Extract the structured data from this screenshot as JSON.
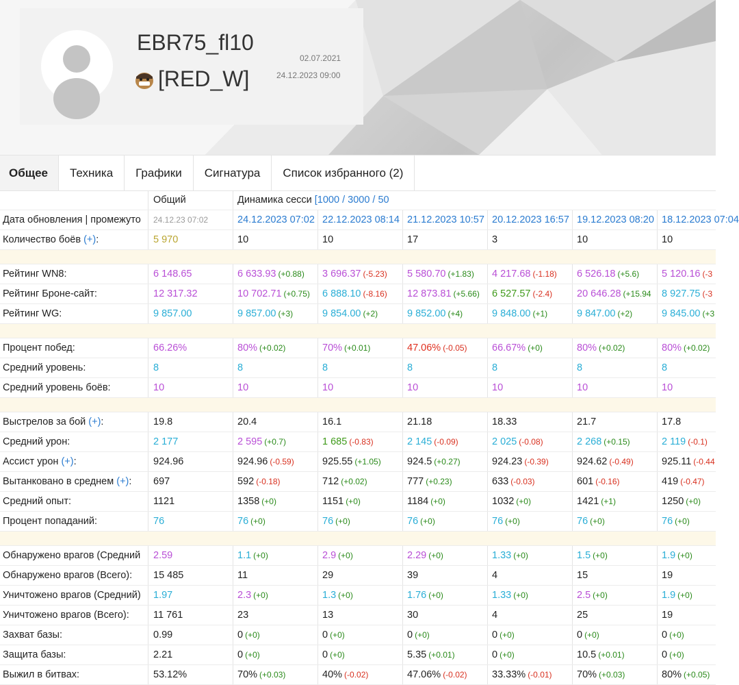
{
  "profile": {
    "username": "EBR75_fl10",
    "clan": "[RED_W]",
    "registered": "02.07.2021",
    "last_battle": "24.12.2023 09:00"
  },
  "tabs": [
    "Общее",
    "Техника",
    "Графики",
    "Сигнатура",
    "Список избранного (2)"
  ],
  "table": {
    "total_header": "Общий",
    "dynamics_label": "Динамика сесси",
    "dynamics_links": "[1000 / 3000 / 50",
    "rows": {
      "dates": {
        "label": "Дата обновления | промежуто",
        "total": "24.12.23 07:02",
        "sessions": [
          "24.12.2023 07:02",
          "22.12.2023 08:14",
          "21.12.2023 10:57",
          "20.12.2023 16:57",
          "19.12.2023 08:20",
          "18.12.2023 07:04"
        ]
      },
      "battles": {
        "label": "Количество боёв",
        "plus": "(+)",
        "after": ":",
        "total": "5 970",
        "sessions": [
          "10",
          "10",
          "17",
          "3",
          "10",
          "10"
        ]
      },
      "wn8": {
        "label": "Рейтинг WN8:",
        "total": "6 148.65",
        "sessions": [
          [
            "6 633.93",
            "(+0.88)"
          ],
          [
            "3 696.37",
            "(-5.23)"
          ],
          [
            "5 580.70",
            "(+1.83)"
          ],
          [
            "4 217.68",
            "(-1.18)"
          ],
          [
            "6 526.18",
            "(+5.6)"
          ],
          [
            "5 120.16",
            "(-3"
          ]
        ]
      },
      "armor": {
        "label": "Рейтинг Броне-сайт:",
        "total": "12 317.32",
        "sessions": [
          [
            "10 702.71",
            "(+0.75)"
          ],
          [
            "6 888.10",
            "(-8.16)"
          ],
          [
            "12 873.81",
            "(+5.66)"
          ],
          [
            "6 527.57",
            "(-2.4)"
          ],
          [
            "20 646.28",
            "(+15.94"
          ],
          [
            "8 927.75",
            "(-3"
          ]
        ]
      },
      "wg": {
        "label": "Рейтинг WG:",
        "total": "9 857.00",
        "sessions": [
          [
            "9 857.00",
            "(+3)"
          ],
          [
            "9 854.00",
            "(+2)"
          ],
          [
            "9 852.00",
            "(+4)"
          ],
          [
            "9 848.00",
            "(+1)"
          ],
          [
            "9 847.00",
            "(+2)"
          ],
          [
            "9 845.00",
            "(+3"
          ]
        ]
      },
      "winrate": {
        "label": "Процент побед:",
        "total": "66.26%",
        "sessions": [
          [
            "80%",
            "(+0.02)"
          ],
          [
            "70%",
            "(+0.01)"
          ],
          [
            "47.06%",
            "(-0.05)"
          ],
          [
            "66.67%",
            "(+0)"
          ],
          [
            "80%",
            "(+0.02)"
          ],
          [
            "80%",
            "(+0.02)"
          ]
        ]
      },
      "avg_tier": {
        "label": "Средний уровень:",
        "total": "8",
        "sessions": [
          "8",
          "8",
          "8",
          "8",
          "8",
          "8"
        ]
      },
      "avg_tier_battles": {
        "label": "Средний уровень боёв:",
        "total": "10",
        "sessions": [
          "10",
          "10",
          "10",
          "10",
          "10",
          "10"
        ]
      },
      "shots": {
        "label": "Выстрелов за бой",
        "plus": "(+)",
        "after": ":",
        "total": "19.8",
        "sessions": [
          "20.4",
          "16.1",
          "21.18",
          "18.33",
          "21.7",
          "17.8"
        ]
      },
      "damage": {
        "label": "Средний урон:",
        "total": "2 177",
        "sessions": [
          [
            "2 595",
            "(+0.7)"
          ],
          [
            "1 685",
            "(-0.83)"
          ],
          [
            "2 145",
            "(-0.09)"
          ],
          [
            "2 025",
            "(-0.08)"
          ],
          [
            "2 268",
            "(+0.15)"
          ],
          [
            "2 119",
            "(-0.1)"
          ]
        ]
      },
      "assist": {
        "label": "Ассист урон",
        "plus": "(+)",
        "after": ":",
        "total": "924.96",
        "sessions": [
          [
            "924.96",
            "(-0.59)"
          ],
          [
            "925.55",
            "(+1.05)"
          ],
          [
            "924.5",
            "(+0.27)"
          ],
          [
            "924.23",
            "(-0.39)"
          ],
          [
            "924.62",
            "(-0.49)"
          ],
          [
            "925.11",
            "(-0.44"
          ]
        ]
      },
      "tanked": {
        "label": "Вытанковано в среднем",
        "plus": "(+)",
        "after": ":",
        "total": "697",
        "sessions": [
          [
            "592",
            "(-0.18)"
          ],
          [
            "712",
            "(+0.02)"
          ],
          [
            "777",
            "(+0.23)"
          ],
          [
            "633",
            "(-0.03)"
          ],
          [
            "601",
            "(-0.16)"
          ],
          [
            "419",
            "(-0.47)"
          ]
        ]
      },
      "xp": {
        "label": "Средний опыт:",
        "total": "1121",
        "sessions": [
          [
            "1358",
            "(+0)"
          ],
          [
            "1151",
            "(+0)"
          ],
          [
            "1184",
            "(+0)"
          ],
          [
            "1032",
            "(+0)"
          ],
          [
            "1421",
            "(+1)"
          ],
          [
            "1250",
            "(+0)"
          ]
        ]
      },
      "hits": {
        "label": "Процент попаданий:",
        "total": "76",
        "sessions": [
          [
            "76",
            "(+0)"
          ],
          [
            "76",
            "(+0)"
          ],
          [
            "76",
            "(+0)"
          ],
          [
            "76",
            "(+0)"
          ],
          [
            "76",
            "(+0)"
          ],
          [
            "76",
            "(+0)"
          ]
        ]
      },
      "spotted_avg": {
        "label": "Обнаружено врагов (Средний",
        "total": "2.59",
        "sessions": [
          [
            "1.1",
            "(+0)"
          ],
          [
            "2.9",
            "(+0)"
          ],
          [
            "2.29",
            "(+0)"
          ],
          [
            "1.33",
            "(+0)"
          ],
          [
            "1.5",
            "(+0)"
          ],
          [
            "1.9",
            "(+0)"
          ]
        ]
      },
      "spotted_total": {
        "label": "Обнаружено врагов (Всего):",
        "total": "15 485",
        "sessions": [
          "11",
          "29",
          "39",
          "4",
          "15",
          "19"
        ]
      },
      "frags_avg": {
        "label": "Уничтожено врагов (Средний)",
        "total": "1.97",
        "sessions": [
          [
            "2.3",
            "(+0)"
          ],
          [
            "1.3",
            "(+0)"
          ],
          [
            "1.76",
            "(+0)"
          ],
          [
            "1.33",
            "(+0)"
          ],
          [
            "2.5",
            "(+0)"
          ],
          [
            "1.9",
            "(+0)"
          ]
        ]
      },
      "frags_total": {
        "label": "Уничтожено врагов (Всего):",
        "total": "11 761",
        "sessions": [
          "23",
          "13",
          "30",
          "4",
          "25",
          "19"
        ]
      },
      "capture": {
        "label": "Захват базы:",
        "total": "0.99",
        "sessions": [
          [
            "0",
            "(+0)"
          ],
          [
            "0",
            "(+0)"
          ],
          [
            "0",
            "(+0)"
          ],
          [
            "0",
            "(+0)"
          ],
          [
            "0",
            "(+0)"
          ],
          [
            "0",
            "(+0)"
          ]
        ]
      },
      "defense": {
        "label": "Защита базы:",
        "total": "2.21",
        "sessions": [
          [
            "0",
            "(+0)"
          ],
          [
            "0",
            "(+0)"
          ],
          [
            "5.35",
            "(+0.01)"
          ],
          [
            "0",
            "(+0)"
          ],
          [
            "10.5",
            "(+0.01)"
          ],
          [
            "0",
            "(+0)"
          ]
        ]
      },
      "survived": {
        "label": "Выжил в битвах:",
        "total": "53.12%",
        "sessions": [
          [
            "70%",
            "(+0.03)"
          ],
          [
            "40%",
            "(-0.02)"
          ],
          [
            "47.06%",
            "(-0.02)"
          ],
          [
            "33.33%",
            "(-0.01)"
          ],
          [
            "70%",
            "(+0.03)"
          ],
          [
            "80%",
            "(+0.05)"
          ]
        ]
      }
    }
  }
}
